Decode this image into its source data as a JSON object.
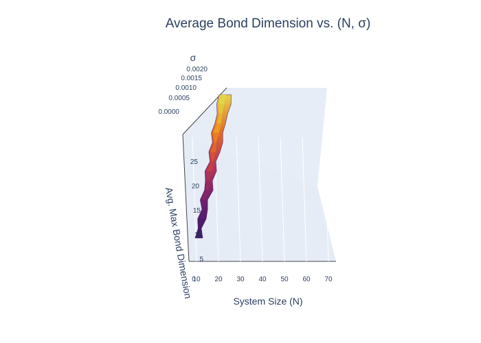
{
  "chart_data": {
    "type": "surface",
    "title": "Average Bond Dimension vs. (N, σ)",
    "xlabel": "System Size (N)",
    "ylabel": "σ",
    "zlabel": "Avg. Max Bond Dimension",
    "x_ticks": [
      "10",
      "20",
      "30",
      "40",
      "50",
      "60",
      "70"
    ],
    "x_origin_label": "0",
    "y_ticks": [
      "0.0000",
      "0.0005",
      "0.0010",
      "0.0015",
      "0.0020"
    ],
    "z_ticks": [
      "5",
      "10",
      "15",
      "20",
      "25"
    ],
    "xlim": [
      10,
      70
    ],
    "ylim": [
      0,
      0.002
    ],
    "zlim": [
      5,
      28
    ],
    "colorscale": "Inferno",
    "colors": {
      "low": "#4a1d6e",
      "mid_low": "#8a2a6a",
      "mid": "#c0392b",
      "mid_high": "#e07a1f",
      "high": "#d8d040",
      "plane": "#e5ecf6"
    },
    "surface": {
      "x": [
        10,
        11,
        12,
        13,
        14,
        15,
        16,
        17,
        18,
        19,
        20,
        21,
        22,
        23,
        24,
        25
      ],
      "z": [
        10,
        11,
        12.5,
        13.5,
        15,
        16.5,
        18,
        19.5,
        21,
        22.5,
        24,
        25.5,
        27,
        28.5,
        30,
        31.5
      ]
    }
  }
}
